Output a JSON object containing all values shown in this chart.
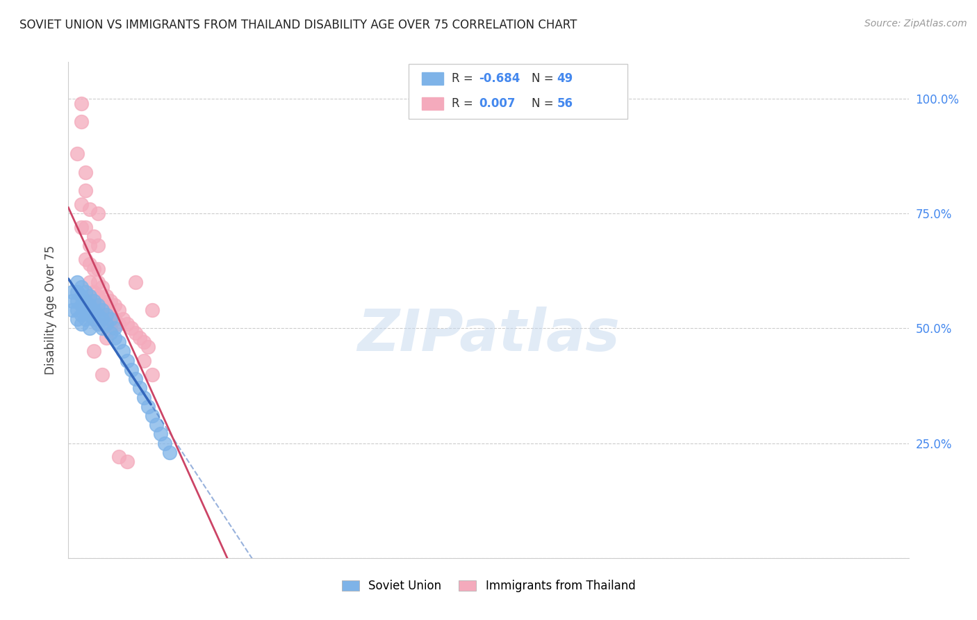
{
  "title": "SOVIET UNION VS IMMIGRANTS FROM THAILAND DISABILITY AGE OVER 75 CORRELATION CHART",
  "source": "Source: ZipAtlas.com",
  "ylabel": "Disability Age Over 75",
  "ytick_positions": [
    0.0,
    0.25,
    0.5,
    0.75,
    1.0
  ],
  "ytick_labels": [
    "",
    "25.0%",
    "50.0%",
    "75.0%",
    "100.0%"
  ],
  "xlim": [
    0.0,
    0.2
  ],
  "ylim": [
    0.0,
    1.08
  ],
  "soviet_R": "-0.684",
  "soviet_N": "49",
  "thailand_R": "0.007",
  "thailand_N": "56",
  "soviet_color": "#7EB3E8",
  "thailand_color": "#F4AABC",
  "trend_soviet_color": "#3366BB",
  "trend_thailand_color": "#CC4466",
  "background_color": "#FFFFFF",
  "watermark_text": "ZIPatlas",
  "watermark_color": "#C5D8EE",
  "soviet_x": [
    0.001,
    0.001,
    0.001,
    0.002,
    0.002,
    0.002,
    0.002,
    0.002,
    0.003,
    0.003,
    0.003,
    0.003,
    0.003,
    0.004,
    0.004,
    0.004,
    0.004,
    0.005,
    0.005,
    0.005,
    0.005,
    0.006,
    0.006,
    0.006,
    0.007,
    0.007,
    0.007,
    0.008,
    0.008,
    0.008,
    0.009,
    0.009,
    0.01,
    0.01,
    0.011,
    0.011,
    0.012,
    0.013,
    0.014,
    0.015,
    0.016,
    0.017,
    0.018,
    0.019,
    0.02,
    0.021,
    0.022,
    0.023,
    0.024
  ],
  "soviet_y": [
    0.58,
    0.56,
    0.54,
    0.6,
    0.58,
    0.56,
    0.54,
    0.52,
    0.59,
    0.57,
    0.55,
    0.53,
    0.51,
    0.58,
    0.56,
    0.54,
    0.52,
    0.57,
    0.55,
    0.53,
    0.5,
    0.56,
    0.54,
    0.52,
    0.55,
    0.53,
    0.51,
    0.54,
    0.52,
    0.5,
    0.53,
    0.51,
    0.52,
    0.49,
    0.5,
    0.48,
    0.47,
    0.45,
    0.43,
    0.41,
    0.39,
    0.37,
    0.35,
    0.33,
    0.31,
    0.29,
    0.27,
    0.25,
    0.23
  ],
  "thailand_x": [
    0.003,
    0.003,
    0.004,
    0.004,
    0.004,
    0.005,
    0.005,
    0.005,
    0.005,
    0.006,
    0.006,
    0.006,
    0.006,
    0.007,
    0.007,
    0.007,
    0.007,
    0.007,
    0.008,
    0.008,
    0.008,
    0.009,
    0.009,
    0.009,
    0.009,
    0.01,
    0.01,
    0.01,
    0.011,
    0.011,
    0.012,
    0.012,
    0.013,
    0.014,
    0.015,
    0.016,
    0.017,
    0.018,
    0.019,
    0.02,
    0.002,
    0.003,
    0.004,
    0.005,
    0.006,
    0.007,
    0.006,
    0.008,
    0.018,
    0.02,
    0.012,
    0.007,
    0.009,
    0.014,
    0.003,
    0.016
  ],
  "thailand_y": [
    0.77,
    0.72,
    0.8,
    0.72,
    0.65,
    0.68,
    0.64,
    0.6,
    0.56,
    0.63,
    0.58,
    0.55,
    0.52,
    0.63,
    0.6,
    0.57,
    0.54,
    0.51,
    0.59,
    0.56,
    0.53,
    0.57,
    0.54,
    0.51,
    0.48,
    0.56,
    0.53,
    0.5,
    0.55,
    0.52,
    0.54,
    0.51,
    0.52,
    0.51,
    0.5,
    0.49,
    0.48,
    0.47,
    0.46,
    0.54,
    0.88,
    0.95,
    0.84,
    0.76,
    0.7,
    0.68,
    0.45,
    0.4,
    0.43,
    0.4,
    0.22,
    0.75,
    0.55,
    0.21,
    0.99,
    0.6
  ]
}
